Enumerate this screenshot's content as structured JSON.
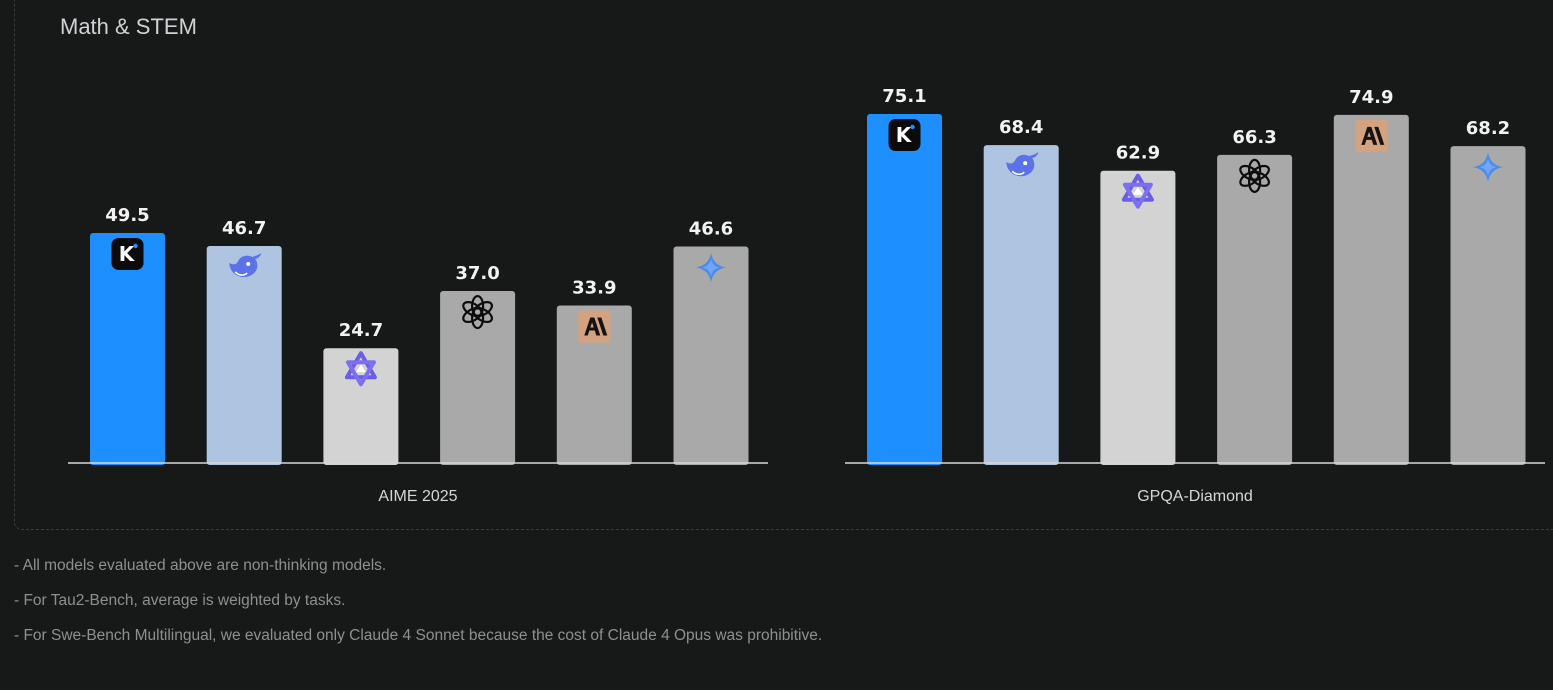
{
  "section": {
    "title": "Math & STEM"
  },
  "notes": [
    "- All models evaluated above are non-thinking models.",
    "- For Tau2-Bench, average is weighted by tasks.",
    "- For Swe-Bench Multilingual, we evaluated only Claude 4 Sonnet because the cost of Claude 4 Opus was prohibitive."
  ],
  "colors": {
    "background": "#171918",
    "axis": "#d8d8d8",
    "value_label": "#f2f2f2",
    "category_label": "#d4d7da"
  },
  "chart_data": [
    {
      "type": "bar",
      "title": "",
      "xlabel": "AIME 2025",
      "ylabel": "",
      "grid": false,
      "bars": [
        {
          "value": 49.5,
          "label": "49.5",
          "color": "#1e8fff",
          "icon": "kimi-icon"
        },
        {
          "value": 46.7,
          "label": "46.7",
          "color": "#afc4e0",
          "icon": "deepseek-icon"
        },
        {
          "value": 24.7,
          "label": "24.7",
          "color": "#d3d3d3",
          "icon": "qwen-icon"
        },
        {
          "value": 37.0,
          "label": "37.0",
          "color": "#a9a9a9",
          "icon": "openai-icon"
        },
        {
          "value": 33.9,
          "label": "33.9",
          "color": "#a9a9a9",
          "icon": "anthropic-icon"
        },
        {
          "value": 46.6,
          "label": "46.6",
          "color": "#a9a9a9",
          "icon": "gemini-icon"
        }
      ]
    },
    {
      "type": "bar",
      "title": "",
      "xlabel": "GPQA-Diamond",
      "ylabel": "",
      "grid": false,
      "bars": [
        {
          "value": 75.1,
          "label": "75.1",
          "color": "#1e8fff",
          "icon": "kimi-icon"
        },
        {
          "value": 68.4,
          "label": "68.4",
          "color": "#afc4e0",
          "icon": "deepseek-icon"
        },
        {
          "value": 62.9,
          "label": "62.9",
          "color": "#d3d3d3",
          "icon": "qwen-icon"
        },
        {
          "value": 66.3,
          "label": "66.3",
          "color": "#a9a9a9",
          "icon": "openai-icon"
        },
        {
          "value": 74.9,
          "label": "74.9",
          "color": "#a9a9a9",
          "icon": "anthropic-icon"
        },
        {
          "value": 68.2,
          "label": "68.2",
          "color": "#a9a9a9",
          "icon": "gemini-icon"
        }
      ]
    }
  ]
}
